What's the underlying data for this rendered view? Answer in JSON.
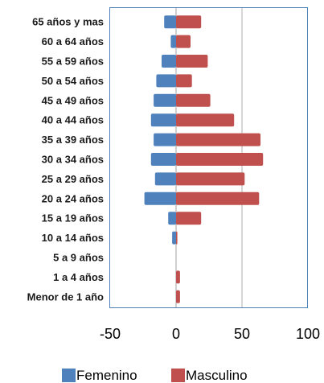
{
  "chart_data": {
    "type": "bar",
    "orientation": "horizontal",
    "title": "",
    "xlabel": "",
    "ylabel": "",
    "categories": [
      "65 años y mas",
      "60 a 64 años",
      "55 a 59 años",
      "50 a 54 años",
      "45 a 49 años",
      "40 a 44 años",
      "35 a 39 años",
      "30 a 34 años",
      "25 a 29 años",
      "20 a 24 años",
      "15 a 19 años",
      "10 a 14 años",
      "5 a 9 años",
      "1 a 4 años",
      "Menor de 1 año"
    ],
    "series": [
      {
        "name": "Femenino",
        "color": "#4f81bd",
        "values": [
          -9,
          -4,
          -11,
          -15,
          -17,
          -19,
          -17,
          -19,
          -16,
          -24,
          -6,
          -3,
          0,
          0,
          0
        ]
      },
      {
        "name": "Masculino",
        "color": "#c0504d",
        "values": [
          19,
          11,
          24,
          12,
          26,
          44,
          64,
          66,
          52,
          63,
          19,
          1,
          0,
          3,
          3
        ]
      }
    ],
    "xlim": [
      -50,
      100
    ],
    "xticks": [
      "-50",
      "0",
      "50",
      "100"
    ],
    "grid": true,
    "stacked": true,
    "legend": "bottom"
  }
}
